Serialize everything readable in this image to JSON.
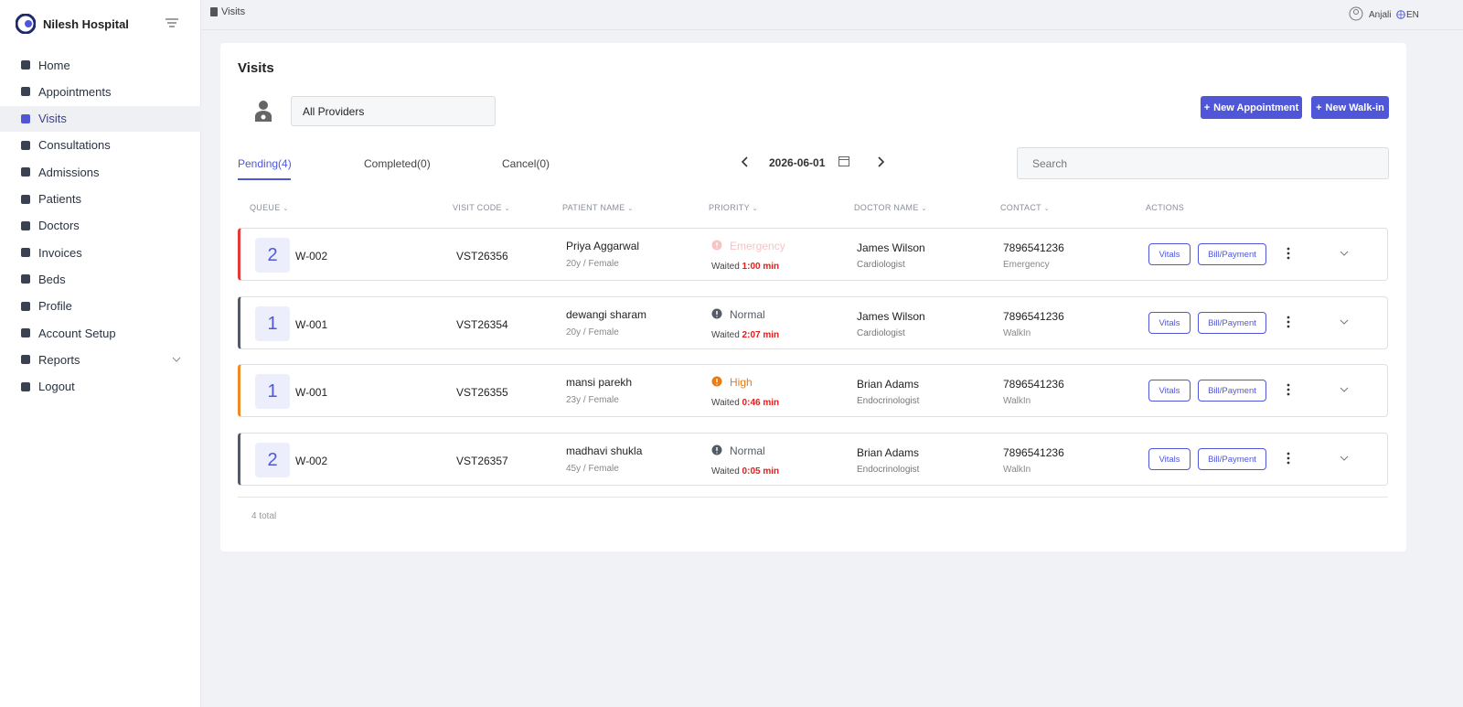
{
  "sidebar": {
    "brand": "Nilesh Hospital",
    "menu": [
      "Home",
      "Appointments",
      "Visits",
      "Consultations",
      "Admissions",
      "Patients",
      "Doctors",
      "Invoices",
      "Beds",
      "Profile",
      "Account Setup",
      "Reports",
      "Logout"
    ]
  },
  "topbar": {
    "breadcrumb": "Visits",
    "user": "Anjali",
    "language": "EN"
  },
  "page": {
    "title": "Visits",
    "provider_filter": "All Providers",
    "buttons": [
      "New Appointment",
      "New Walk-in"
    ],
    "tabs": [
      "Pending(4)",
      "Completed(0)",
      "Cancel(0)"
    ],
    "date": "2026-06-01",
    "search_placeholder": "Search"
  },
  "table": {
    "columns": [
      "QUEUE",
      "VISIT CODE",
      "PATIENT NAME",
      "PRIORITY",
      "DOCTOR NAME",
      "CONTACT",
      "ACTIONS"
    ],
    "rows": [
      {
        "queue_number": 2,
        "queue": "W-002",
        "visit_code": "VST26356",
        "patient": "Priya Aggarwal",
        "details": "20y / Female",
        "priority": "Emergency",
        "priority_color": "#f7c3c3",
        "accent": "#e53935",
        "waited_label": "Waited",
        "waited": "1:00 min",
        "doctor": "James Wilson",
        "specialty": "Cardiologist",
        "contact": "7896541236",
        "visit_type": "Emergency",
        "actions": [
          "Vitals",
          "Bill/Payment"
        ]
      },
      {
        "queue_number": 1,
        "queue": "W-001",
        "visit_code": "VST26354",
        "patient": "dewangi sharam",
        "details": "20y / Female",
        "priority": "Normal",
        "priority_color": "#555b66",
        "accent": "#555b66",
        "waited_label": "Waited",
        "waited": "2:07 min",
        "doctor": "James Wilson",
        "specialty": "Cardiologist",
        "contact": "7896541236",
        "visit_type": "WalkIn",
        "actions": [
          "Vitals",
          "Bill/Payment"
        ]
      },
      {
        "queue_number": 1,
        "queue": "W-001",
        "visit_code": "VST26355",
        "patient": "mansi parekh",
        "details": "23y / Female",
        "priority": "High",
        "priority_color": "#ee7a12",
        "accent": "#f08a24",
        "waited_label": "Waited",
        "waited": "0:46 min",
        "doctor": "Brian Adams",
        "specialty": "Endocrinologist",
        "contact": "7896541236",
        "visit_type": "WalkIn",
        "actions": [
          "Vitals",
          "Bill/Payment"
        ]
      },
      {
        "queue_number": 2,
        "queue": "W-002",
        "visit_code": "VST26357",
        "patient": "madhavi shukla",
        "details": "45y / Female",
        "priority": "Normal",
        "priority_color": "#555b66",
        "accent": "#555b66",
        "waited_label": "Waited",
        "waited": "0:05 min",
        "doctor": "Brian Adams",
        "specialty": "Endocrinologist",
        "contact": "7896541236",
        "visit_type": "WalkIn",
        "actions": [
          "Vitals",
          "Bill/Payment"
        ]
      }
    ],
    "total": "4 total"
  }
}
